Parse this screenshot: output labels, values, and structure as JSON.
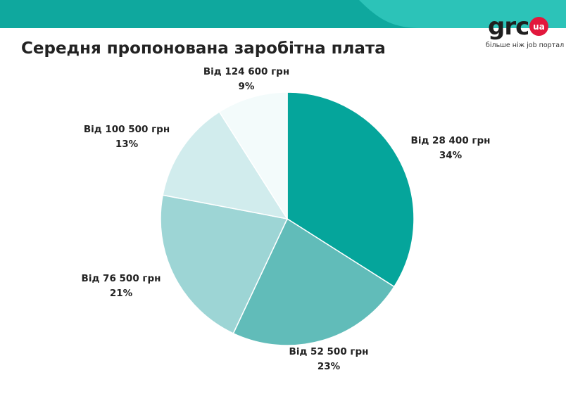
{
  "colors": {
    "band": "#0fa89e",
    "band_light": "#2cc3b8",
    "logo_accent": "#e2183d"
  },
  "title": "Середня пропонована заробітна плата",
  "logo": {
    "word": "grc",
    "badge": "ua",
    "tagline": "більше ніж job портал"
  },
  "chart_data": {
    "type": "pie",
    "title": "Середня пропонована заробітна плата",
    "slices": [
      {
        "label": "Від 28 400 грн",
        "value": 34,
        "value_label": "34%",
        "color": "#05a59b"
      },
      {
        "label": "Від 52 500 грн",
        "value": 23,
        "value_label": "23%",
        "color": "#61bcb9"
      },
      {
        "label": "Від 76 500 грн",
        "value": 21,
        "value_label": "21%",
        "color": "#9dd5d5"
      },
      {
        "label": "Від 100 500 грн",
        "value": 13,
        "value_label": "13%",
        "color": "#d1eced"
      },
      {
        "label": "Від 124 600 грн",
        "value": 9,
        "value_label": "9%",
        "color": "#f3fbfb"
      }
    ],
    "start_angle_deg": 0,
    "direction": "clockwise"
  }
}
